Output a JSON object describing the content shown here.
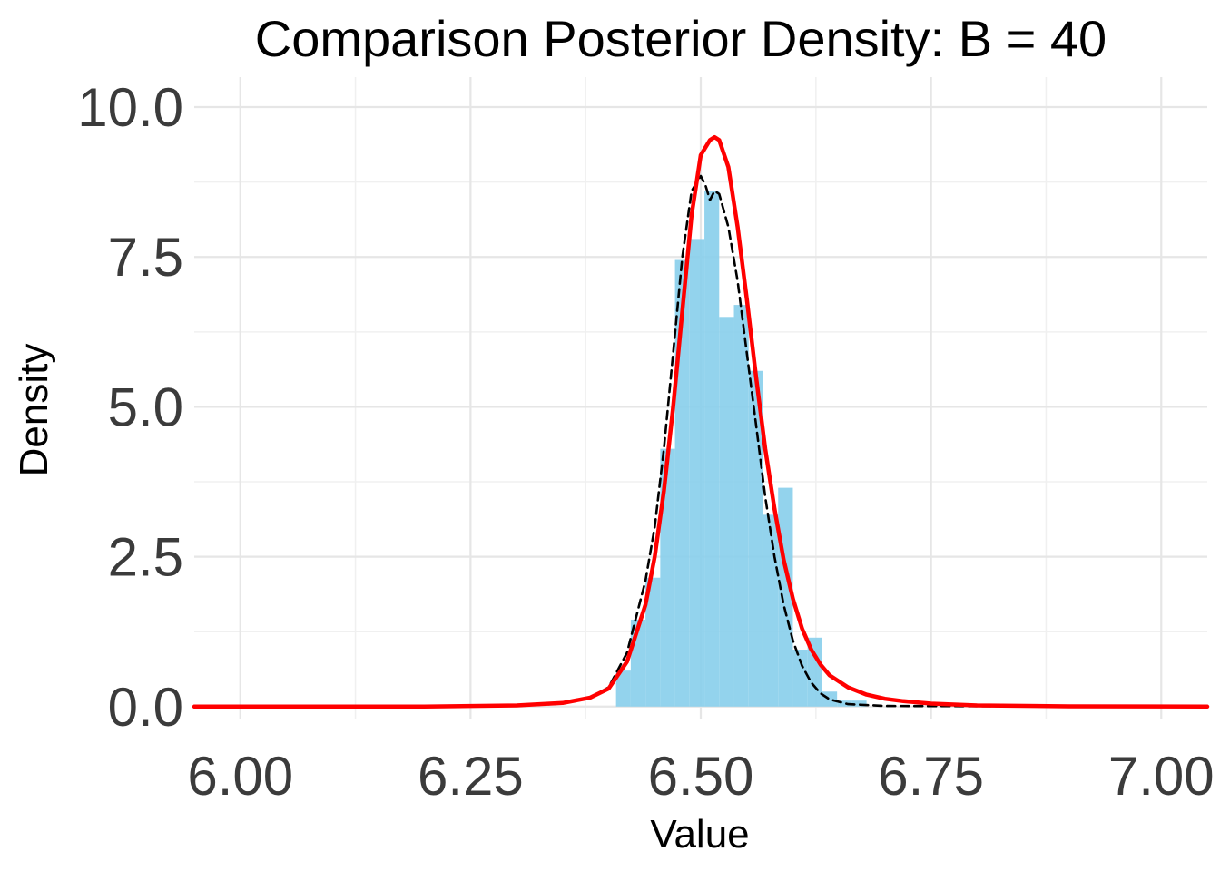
{
  "chart_data": {
    "type": "bar",
    "title": "Comparison Posterior Density: B = 40",
    "xlabel": "Value",
    "ylabel": "Density",
    "xlim": [
      5.95,
      7.05
    ],
    "ylim": [
      -0.2,
      10.5
    ],
    "x_ticks": [
      {
        "value": 6.0,
        "label": "6.00"
      },
      {
        "value": 6.25,
        "label": "6.25"
      },
      {
        "value": 6.5,
        "label": "6.50"
      },
      {
        "value": 6.75,
        "label": "6.75"
      },
      {
        "value": 7.0,
        "label": "7.00"
      }
    ],
    "y_ticks": [
      {
        "value": 0,
        "label": "0.0"
      },
      {
        "value": 2.5,
        "label": "2.5"
      },
      {
        "value": 5,
        "label": "5.0"
      },
      {
        "value": 7.5,
        "label": "7.5"
      },
      {
        "value": 10,
        "label": "10.0"
      }
    ],
    "grid": true,
    "histogram": {
      "color": "#87CEEB",
      "bin_width": 0.016,
      "bin_starts": [
        6.408,
        6.424,
        6.44,
        6.456,
        6.472,
        6.488,
        6.504,
        6.52,
        6.536,
        6.552,
        6.568,
        6.584,
        6.6,
        6.616,
        6.632,
        6.648,
        6.664
      ],
      "densities": [
        0.6,
        1.45,
        2.15,
        4.3,
        7.45,
        7.8,
        8.6,
        6.5,
        6.7,
        5.6,
        3.2,
        3.65,
        0.95,
        1.15,
        0.25,
        0.1,
        0.1
      ]
    },
    "series": [
      {
        "color": "#FF0000",
        "style": "solid",
        "x": [
          5.95,
          6.2,
          6.3,
          6.35,
          6.38,
          6.4,
          6.42,
          6.44,
          6.45,
          6.46,
          6.47,
          6.48,
          6.49,
          6.5,
          6.51,
          6.515,
          6.52,
          6.53,
          6.54,
          6.55,
          6.56,
          6.57,
          6.58,
          6.59,
          6.6,
          6.61,
          6.62,
          6.63,
          6.64,
          6.66,
          6.68,
          6.7,
          6.72,
          6.75,
          6.8,
          6.9,
          7.05
        ],
        "y": [
          0,
          0.002,
          0.02,
          0.06,
          0.15,
          0.3,
          0.75,
          1.7,
          2.5,
          3.6,
          5.0,
          6.6,
          8.2,
          9.2,
          9.45,
          9.5,
          9.45,
          9.0,
          8.0,
          6.8,
          5.5,
          4.3,
          3.3,
          2.45,
          1.8,
          1.3,
          0.95,
          0.7,
          0.52,
          0.32,
          0.2,
          0.13,
          0.09,
          0.05,
          0.02,
          0.005,
          0
        ]
      },
      {
        "color": "#000000",
        "style": "dashed",
        "x": [
          5.95,
          6.3,
          6.35,
          6.38,
          6.4,
          6.42,
          6.44,
          6.45,
          6.46,
          6.47,
          6.48,
          6.49,
          6.5,
          6.505,
          6.51,
          6.515,
          6.52,
          6.53,
          6.54,
          6.55,
          6.56,
          6.57,
          6.58,
          6.59,
          6.6,
          6.61,
          6.62,
          6.63,
          6.64,
          6.66,
          6.7,
          7.05
        ],
        "y": [
          0,
          0.01,
          0.05,
          0.15,
          0.32,
          0.9,
          2.1,
          3.0,
          4.3,
          5.9,
          7.5,
          8.6,
          8.85,
          8.7,
          8.45,
          8.6,
          8.55,
          8.0,
          7.1,
          5.9,
          4.7,
          3.5,
          2.5,
          1.7,
          1.1,
          0.68,
          0.4,
          0.22,
          0.12,
          0.04,
          0.01,
          0
        ]
      }
    ]
  }
}
